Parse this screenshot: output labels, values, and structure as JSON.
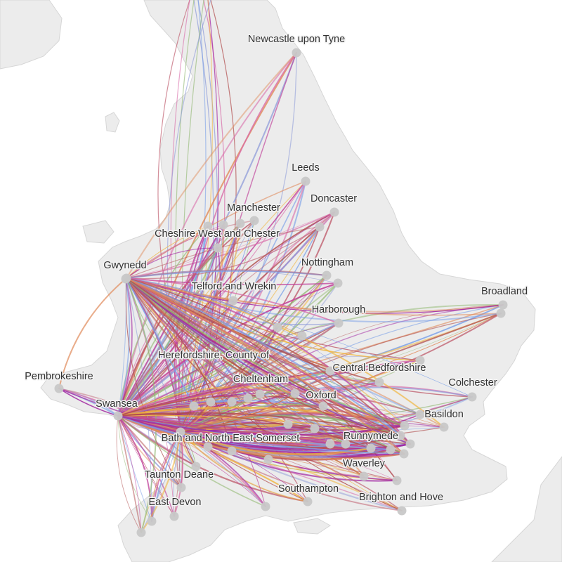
{
  "map": {
    "colors": {
      "sea": "#ffffff",
      "land": "#ececec",
      "coast": "#d6d6d6",
      "node": "#c8c8c8",
      "label": "#333333",
      "flow_palette": [
        "#a020a0",
        "#c0409a",
        "#d96aa8",
        "#e08a5a",
        "#f0b43c",
        "#8c9ad8",
        "#7aa0e8",
        "#90b870",
        "#b04c4c",
        "#c06070"
      ]
    },
    "labels": [
      "Newcastle upon Tyne",
      "Leeds",
      "Doncaster",
      "Manchester",
      "Cheshire West and Chester",
      "Nottingham",
      "Gwynedd",
      "Telford and Wrekin",
      "Broadland",
      "Harborough",
      "Herefordshire, County of",
      "Central Bedfordshire",
      "Pembrokeshire",
      "Cheltenham",
      "Colchester",
      "Swansea",
      "Oxford",
      "Basildon",
      "Bath and North East Somerset",
      "Runnymede",
      "Waverley",
      "Taunton Deane",
      "Southampton",
      "Brighton and Hove",
      "East Devon"
    ]
  }
}
